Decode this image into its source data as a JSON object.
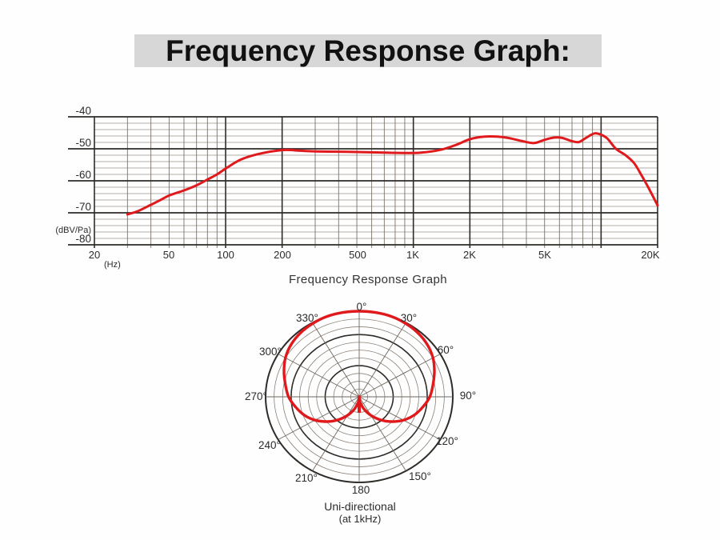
{
  "title": "Frequency Response Graph:",
  "colors": {
    "curve_red": "#e0191c",
    "grid_major": "#2e2b28",
    "grid_minor_h": "#9b9187",
    "grid_minor_v": "#7a726a",
    "title_bg": "#d7d7d7"
  },
  "freq_chart": {
    "subtitle": "Frequency Response Graph",
    "y_unit": "(dBV/Pa)",
    "x_unit": "(Hz)"
  },
  "polar_chart": {
    "caption_line1": "Uni-directional",
    "caption_line2": "(at 1kHz)"
  },
  "chart_data": [
    {
      "type": "line",
      "title": "Frequency Response Graph",
      "xlabel": "(Hz)",
      "ylabel": "(dBV/Pa)",
      "x_scale": "log",
      "xlim": [
        20,
        20000
      ],
      "ylim": [
        -80,
        -40
      ],
      "grid": "on",
      "y_ticks": [
        "-40",
        "-50",
        "-60",
        "-70",
        "-80"
      ],
      "y_tick_values": [
        -40,
        -50,
        -60,
        -70,
        -80
      ],
      "y_minor_step_db": 2,
      "x_ticks": [
        "20",
        "50",
        "100",
        "200",
        "500",
        "1K",
        "2K",
        "5K",
        "20K"
      ],
      "x_tick_values": [
        20,
        50,
        100,
        200,
        500,
        1000,
        2000,
        5000,
        20000
      ],
      "x_major_lines": [
        20,
        100,
        200,
        1000,
        2000,
        10000,
        20000
      ],
      "series": [
        {
          "name": "frequency-response",
          "color": "#e0191c",
          "points": [
            [
              30,
              -70.5
            ],
            [
              34,
              -69.5
            ],
            [
              40,
              -67.5
            ],
            [
              45,
              -66.0
            ],
            [
              50,
              -64.6
            ],
            [
              60,
              -63.0
            ],
            [
              70,
              -61.4
            ],
            [
              80,
              -59.6
            ],
            [
              90,
              -58.0
            ],
            [
              100,
              -56.2
            ],
            [
              120,
              -53.4
            ],
            [
              150,
              -51.6
            ],
            [
              200,
              -50.4
            ],
            [
              250,
              -50.6
            ],
            [
              300,
              -50.8
            ],
            [
              400,
              -50.9
            ],
            [
              500,
              -51.0
            ],
            [
              700,
              -51.2
            ],
            [
              900,
              -51.3
            ],
            [
              1100,
              -51.2
            ],
            [
              1400,
              -50.3
            ],
            [
              1700,
              -48.7
            ],
            [
              2000,
              -47.0
            ],
            [
              2400,
              -46.2
            ],
            [
              2800,
              -46.2
            ],
            [
              3200,
              -46.6
            ],
            [
              3800,
              -47.6
            ],
            [
              4400,
              -48.2
            ],
            [
              5000,
              -47.2
            ],
            [
              5600,
              -46.5
            ],
            [
              6200,
              -46.6
            ],
            [
              6900,
              -47.5
            ],
            [
              7600,
              -47.9
            ],
            [
              8300,
              -46.6
            ],
            [
              9200,
              -45.2
            ],
            [
              10000,
              -45.6
            ],
            [
              10800,
              -46.8
            ],
            [
              12000,
              -50.0
            ],
            [
              13500,
              -52.0
            ],
            [
              15000,
              -54.5
            ],
            [
              16500,
              -58.5
            ],
            [
              18000,
              -62.5
            ],
            [
              20000,
              -67.7
            ]
          ]
        }
      ]
    },
    {
      "type": "polar",
      "title": "Uni-directional (at 1kHz)",
      "angle_labels": [
        "0°",
        "30°",
        "60°",
        "90°",
        "120°",
        "150°",
        "180",
        "210°",
        "240°",
        "270°",
        "300°",
        "330°"
      ],
      "angle_ticks_deg": [
        0,
        30,
        60,
        90,
        120,
        150,
        180,
        210,
        240,
        270,
        300,
        330
      ],
      "rings_total": 11,
      "dark_rings": [
        4,
        8,
        11
      ],
      "pattern_name": "cardioid-unidirectional",
      "pattern_r_by_angle": [
        [
          0,
          1.0
        ],
        [
          10,
          1.0
        ],
        [
          20,
          1.0
        ],
        [
          30,
          0.99
        ],
        [
          40,
          0.975
        ],
        [
          50,
          0.95
        ],
        [
          60,
          0.91
        ],
        [
          70,
          0.855
        ],
        [
          80,
          0.8
        ],
        [
          90,
          0.755
        ],
        [
          100,
          0.69
        ],
        [
          110,
          0.625
        ],
        [
          120,
          0.545
        ],
        [
          130,
          0.45
        ],
        [
          140,
          0.35
        ],
        [
          150,
          0.25
        ],
        [
          160,
          0.155
        ],
        [
          170,
          0.07
        ],
        [
          176,
          0.025
        ],
        [
          180,
          0.0
        ]
      ],
      "rear_lobe_spike": true
    }
  ]
}
